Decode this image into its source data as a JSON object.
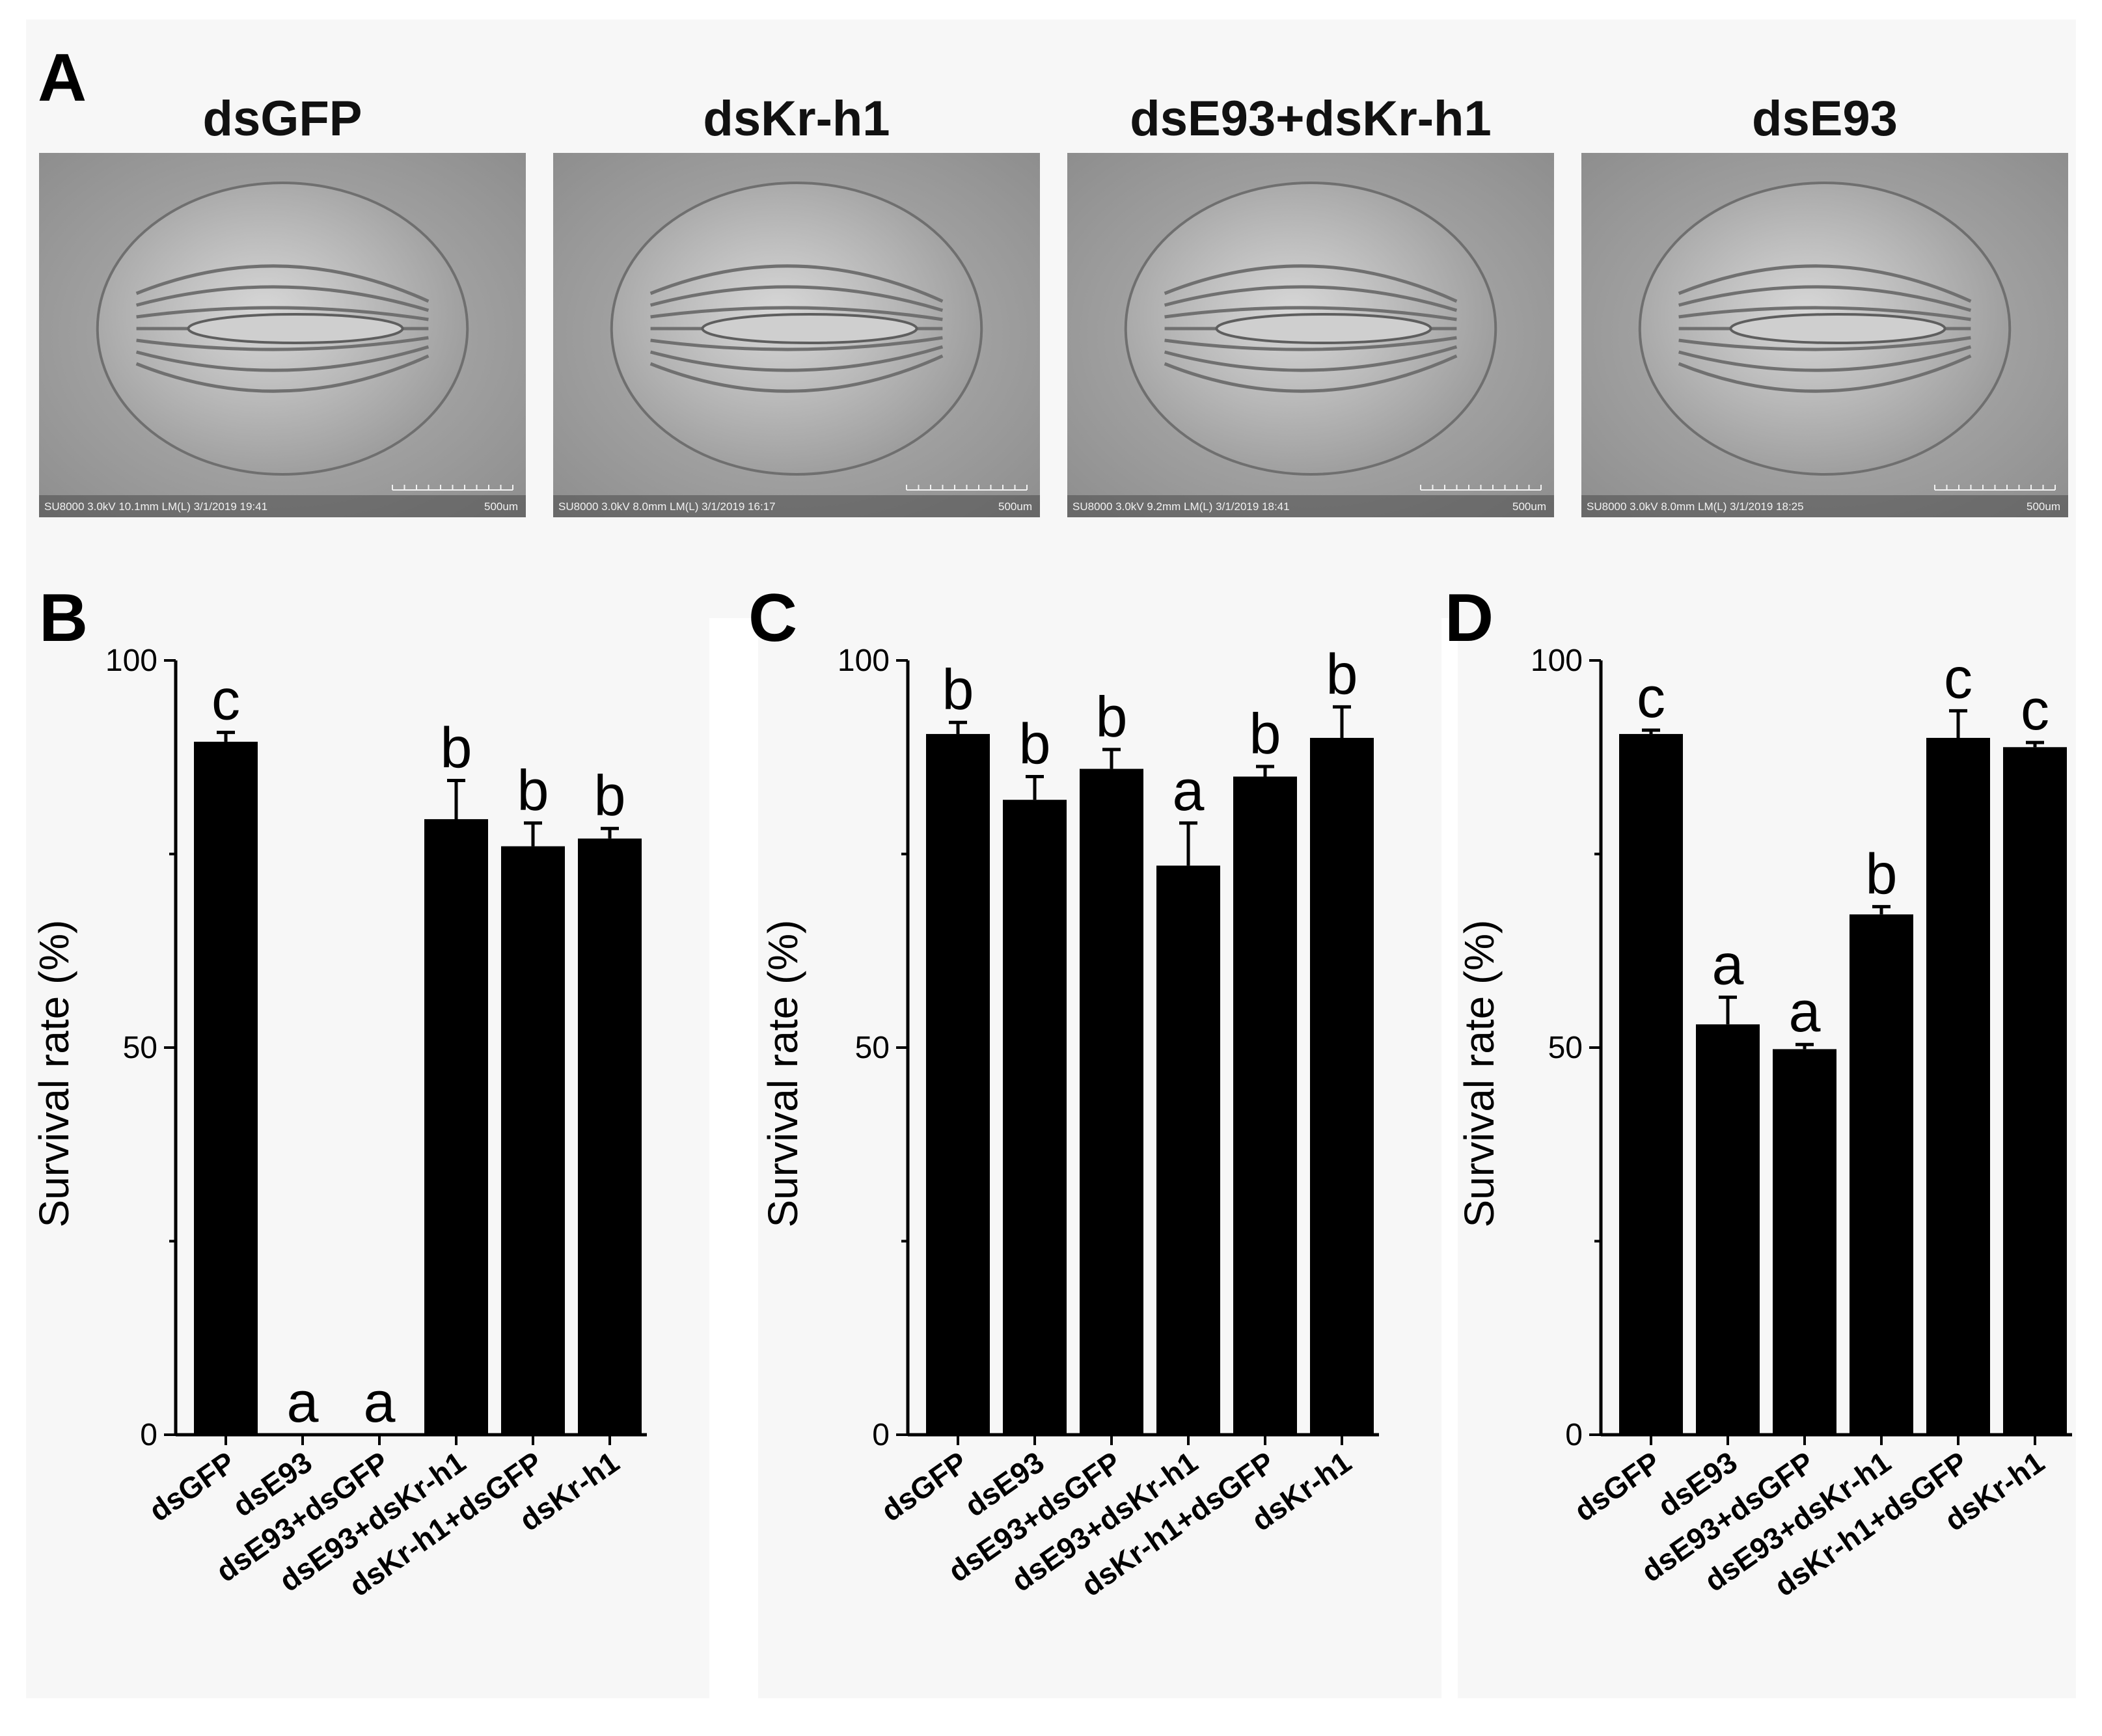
{
  "figure": {
    "panel_a": {
      "label": "A",
      "images": [
        {
          "title": "dsGFP",
          "caption": "SU8000 3.0kV 10.1mm LM(L) 3/1/2019 19:41",
          "scale": "500um"
        },
        {
          "title": "dsKr-h1",
          "caption": "SU8000 3.0kV 8.0mm LM(L) 3/1/2019 16:17",
          "scale": "500um"
        },
        {
          "title": "dsE93+dsKr-h1",
          "caption": "SU8000 3.0kV 9.2mm LM(L) 3/1/2019 18:41",
          "scale": "500um"
        },
        {
          "title": "dsE93",
          "caption": "SU8000 3.0kV 8.0mm LM(L) 3/1/2019 18:25",
          "scale": "500um"
        }
      ]
    }
  },
  "chart_data": [
    {
      "panel": "B",
      "type": "bar",
      "categories": [
        "dsGFP",
        "dsE93",
        "dsE93+dsGFP",
        "dsE93+dsKr-h1",
        "dsKr-h1+dsGFP",
        "dsKr-h1"
      ],
      "values": [
        89.5,
        0,
        0,
        79.5,
        76.0,
        77.0
      ],
      "errors": [
        1.2,
        0,
        0,
        5.0,
        3.0,
        1.3
      ],
      "letters": [
        "c",
        "a",
        "a",
        "b",
        "b",
        "b"
      ],
      "ylabel": "Survival rate (%)",
      "ylim": [
        0,
        100
      ],
      "yticks": [
        0,
        50,
        100
      ]
    },
    {
      "panel": "C",
      "type": "bar",
      "categories": [
        "dsGFP",
        "dsE93",
        "dsE93+dsGFP",
        "dsE93+dsKr-h1",
        "dsKr-h1+dsGFP",
        "dsKr-h1"
      ],
      "values": [
        90.5,
        82.0,
        86.0,
        73.5,
        85.0,
        90.0
      ],
      "errors": [
        1.5,
        3.0,
        2.5,
        5.5,
        1.3,
        4.0
      ],
      "letters": [
        "b",
        "b",
        "b",
        "a",
        "b",
        "b"
      ],
      "ylabel": "Survival rate (%)",
      "ylim": [
        0,
        100
      ],
      "yticks": [
        0,
        50,
        100
      ]
    },
    {
      "panel": "D",
      "type": "bar",
      "categories": [
        "dsGFP",
        "dsE93",
        "dsE93+dsGFP",
        "dsE93+dsKr-h1",
        "dsKr-h1+dsGFP",
        "dsKr-h1"
      ],
      "values": [
        90.5,
        53.0,
        49.8,
        67.2,
        90.0,
        88.8
      ],
      "errors": [
        0.5,
        3.5,
        0.6,
        1.0,
        3.5,
        0.6
      ],
      "letters": [
        "c",
        "a",
        "a",
        "b",
        "c",
        "c"
      ],
      "ylabel": "Survival rate (%)",
      "ylim": [
        0,
        100
      ],
      "yticks": [
        0,
        50,
        100
      ]
    }
  ]
}
